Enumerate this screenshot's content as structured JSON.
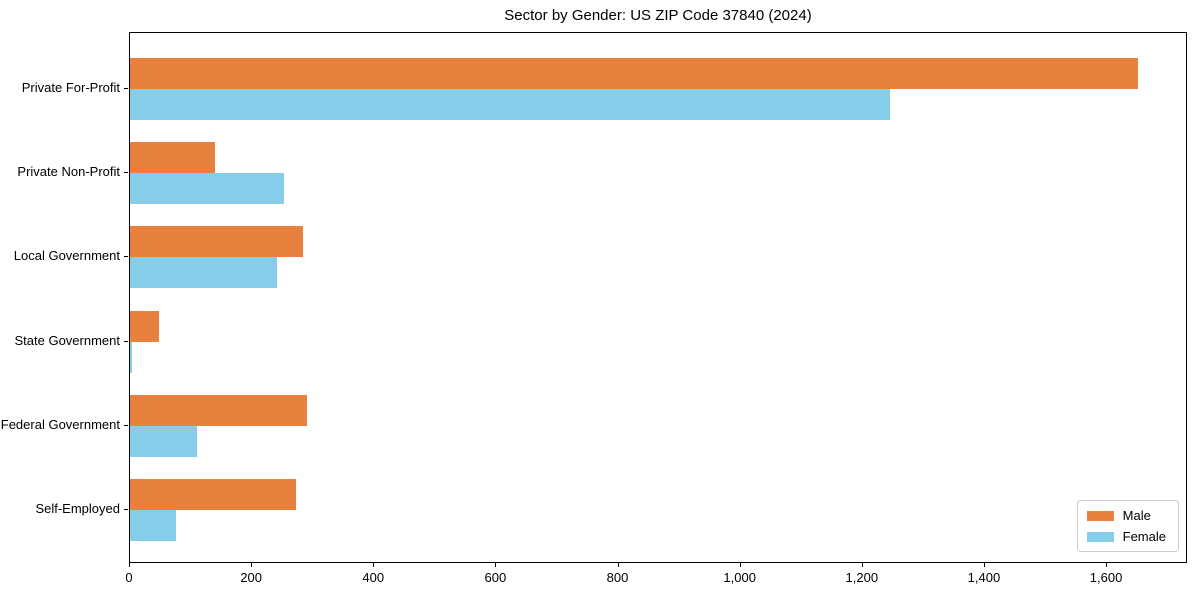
{
  "chart_data": {
    "type": "bar",
    "orientation": "horizontal",
    "title": "Sector by Gender: US ZIP Code 37840 (2024)",
    "categories": [
      "Private For-Profit",
      "Private Non-Profit",
      "Local Government",
      "State Government",
      "Federal Government",
      "Self-Employed"
    ],
    "series": [
      {
        "name": "Male",
        "color": "#e8813d",
        "values": [
          1650,
          140,
          283,
          47,
          290,
          272
        ]
      },
      {
        "name": "Female",
        "color": "#85cde8",
        "values": [
          1245,
          252,
          240,
          3,
          110,
          75
        ]
      }
    ],
    "xlim": [
      0,
      1732.5
    ],
    "xticks": [
      0,
      200,
      400,
      600,
      800,
      1000,
      1200,
      1400,
      1600
    ],
    "xtick_labels": [
      "0",
      "200",
      "400",
      "600",
      "800",
      "1,000",
      "1,200",
      "1,400",
      "1,600"
    ],
    "legend": {
      "position": "lower right"
    },
    "grid": false,
    "background_color": "#ffffff",
    "spine_color": "#000000"
  }
}
